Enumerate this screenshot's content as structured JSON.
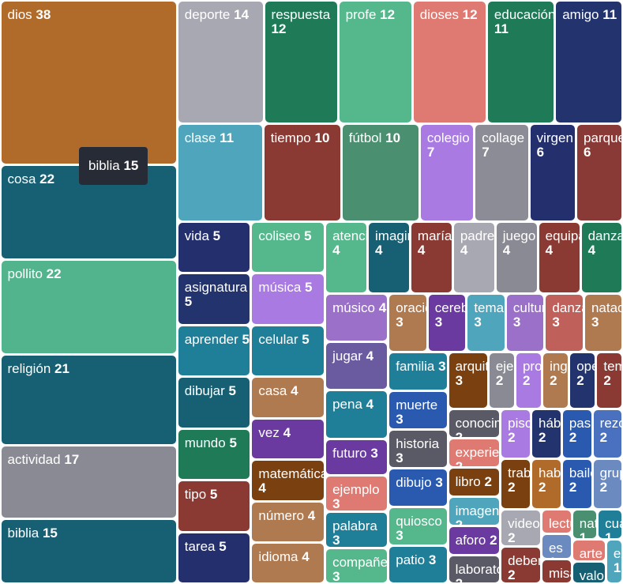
{
  "chart_data": {
    "type": "treemap",
    "categories": [
      "dios",
      "cosa",
      "pollito",
      "religión",
      "actividad",
      "biblia",
      "deporte",
      "respuesta",
      "profe",
      "dioses",
      "educación",
      "amigo",
      "clase",
      "tiempo",
      "fútbol",
      "colegio",
      "collage",
      "virgen",
      "parque",
      "vida",
      "asignatura",
      "aprender",
      "dibujar",
      "mundo",
      "tipo",
      "tarea",
      "coliseo",
      "música",
      "celular",
      "casa",
      "vez",
      "matemática",
      "número",
      "idioma",
      "atención",
      "imaginación",
      "maría",
      "padre",
      "juego",
      "equipar",
      "danza",
      "músico",
      "jugar",
      "pena",
      "futuro",
      "ejemplo",
      "palabra",
      "compañero",
      "oración",
      "cerebro",
      "tema",
      "cultura",
      "danzas",
      "natación",
      "familia",
      "muerte",
      "historia",
      "dibujo",
      "quiosco",
      "patio",
      "arquitectura",
      "ejemplos",
      "profesor",
      "inglés",
      "opera",
      "temas",
      "conocimiento",
      "experiencia",
      "libro",
      "imagen",
      "aforo",
      "laboratorio",
      "piscina",
      "hábito",
      "paseo",
      "rezo",
      "trabajo",
      "hablar",
      "baile",
      "grupo",
      "video",
      "deber",
      "lectura",
      "es",
      "misa",
      "naturaleza",
      "cuaderno",
      "arte",
      "valor",
      "examen"
    ],
    "values": [
      38,
      22,
      22,
      21,
      17,
      15,
      14,
      12,
      12,
      12,
      11,
      11,
      11,
      10,
      10,
      7,
      7,
      6,
      6,
      5,
      5,
      5,
      5,
      5,
      5,
      5,
      5,
      5,
      5,
      4,
      4,
      4,
      4,
      4,
      4,
      4,
      4,
      4,
      4,
      4,
      4,
      4,
      4,
      4,
      3,
      3,
      3,
      3,
      3,
      3,
      3,
      3,
      3,
      3,
      3,
      3,
      3,
      3,
      3,
      3,
      3,
      2,
      2,
      2,
      2,
      2,
      2,
      2,
      2,
      2,
      2,
      2,
      2,
      2,
      2,
      2,
      2,
      2,
      2,
      2,
      2,
      2,
      1,
      1,
      1,
      1,
      1,
      1,
      1,
      1
    ],
    "colors": [
      "#b06a2a",
      "#175f72",
      "#52b48c",
      "#175f72",
      "#8a8a94",
      "#175f72",
      "#a8a8b2",
      "#1f7a58",
      "#55b88c",
      "#de7a72",
      "#1f7a58",
      "#23336e",
      "#4fa6bc",
      "#8a3a32",
      "#4a8f70",
      "#a97ae2",
      "#8c8c96",
      "#24306e",
      "#8a3a36",
      "#24306e",
      "#23336e",
      "#1f7f98",
      "#175f72",
      "#1f7a58",
      "#8a3a32",
      "#24306e",
      "#55b88c",
      "#a97ae2",
      "#1f7f98",
      "#b07a50",
      "#6a3aa0",
      "#7a4010",
      "#b07a50",
      "#b07a50",
      "#55b88c",
      "#175f72",
      "#8a3a32",
      "#a8a8b2",
      "#8a8a94",
      "#8a3a32",
      "#1f7a58",
      "#9a70c8",
      "#6a5aa0",
      "#1f7f98",
      "#6a3aa0",
      "#de7a72",
      "#1f7f98",
      "#55b88c",
      "#b07a50",
      "#6a3aa0",
      "#4fa6bc",
      "#9a70c8",
      "#c0605a",
      "#b07a50",
      "#1f7f98",
      "#2a5ab0",
      "#5a5a66",
      "#2a5ab0",
      "#55b88c",
      "#1f7f98",
      "#7a4010",
      "#8a8a94",
      "#a97ae2",
      "#b07a50",
      "#23336e",
      "#8a3a32",
      "#5a5a66",
      "#de7a72",
      "#7a4010",
      "#4fa6bc",
      "#6a3aa0",
      "#5a5a66",
      "#a97ae2",
      "#23336e",
      "#2a5ab0",
      "#4a70c0",
      "#7a4010",
      "#b06a2a",
      "#2a5ab0",
      "#6a8ac0",
      "#a8a8b2",
      "#8a3a32",
      "#de7a72",
      "#6a8ac0",
      "#8a3a32",
      "#4a8f70",
      "#1f7f98",
      "#de7a72",
      "#175f72",
      "#4fa6bc"
    ],
    "tooltip_index": 5
  }
}
